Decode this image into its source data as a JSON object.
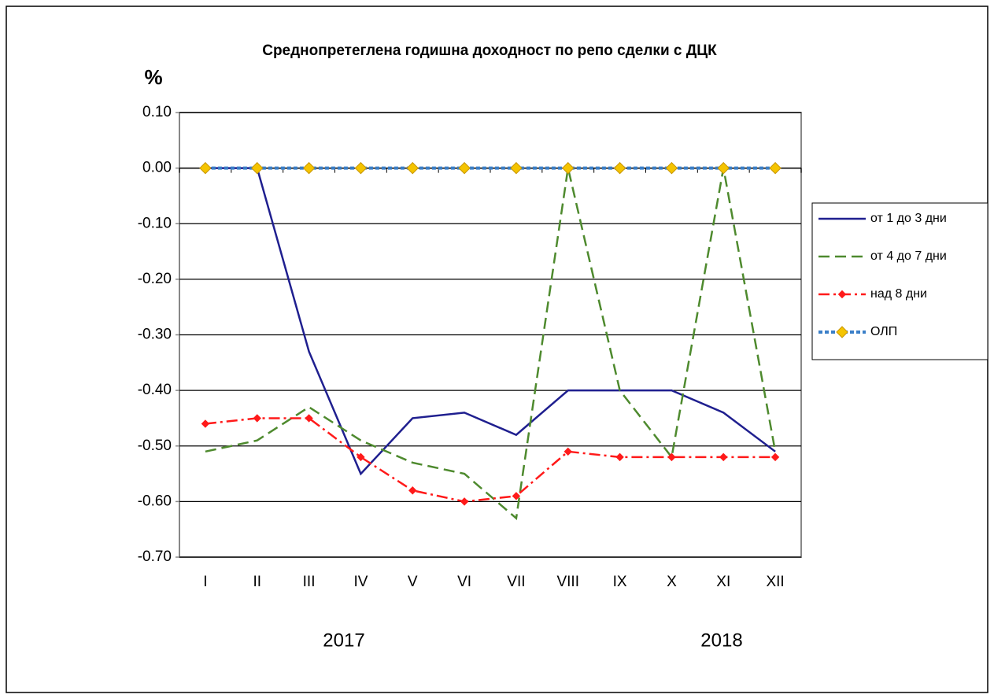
{
  "chart_data": {
    "type": "line",
    "title": "Среднопретеглена годишна доходност по репо сделки с ДЦК",
    "y_label": "%",
    "categories": [
      "I",
      "II",
      "III",
      "IV",
      "V",
      "VI",
      "VII",
      "VIII",
      "IX",
      "X",
      "XI",
      "XII"
    ],
    "year_labels": [
      "2017",
      "2018"
    ],
    "ylim": [
      -0.7,
      0.1
    ],
    "yticks": [
      {
        "value": 0.1,
        "label": "0.10"
      },
      {
        "value": 0,
        "label": "0.00"
      },
      {
        "value": -0.1,
        "label": "-0.10"
      },
      {
        "value": -0.2,
        "label": "-0.20"
      },
      {
        "value": -0.3,
        "label": "-0.30"
      },
      {
        "value": -0.4,
        "label": "-0.40"
      },
      {
        "value": -0.5,
        "label": "-0.50"
      },
      {
        "value": -0.6,
        "label": "-0.60"
      },
      {
        "value": -0.7,
        "label": "-0.70"
      }
    ],
    "grid": true,
    "legend": "right",
    "series": [
      {
        "name": "от 1 до 3 дни",
        "color": "#1f1f8f",
        "dash": "none",
        "marker": "none",
        "values": [
          0,
          0,
          -0.33,
          -0.55,
          -0.45,
          -0.44,
          -0.48,
          -0.4,
          -0.4,
          -0.4,
          -0.44,
          -0.51
        ]
      },
      {
        "name": "от 4 до 7 дни",
        "color": "#4e8a2e",
        "dash": "14 7",
        "marker": "none",
        "values": [
          -0.51,
          -0.49,
          -0.43,
          -0.49,
          -0.53,
          -0.55,
          -0.63,
          0,
          -0.4,
          -0.52,
          0,
          -0.51
        ]
      },
      {
        "name": "над 8 дни",
        "color": "#ff1a1a",
        "dash": "14 5 3 5",
        "marker": "diamond-small",
        "values": [
          -0.46,
          -0.45,
          -0.45,
          -0.52,
          -0.58,
          -0.6,
          -0.59,
          -0.51,
          -0.52,
          -0.52,
          -0.52,
          -0.52
        ]
      },
      {
        "name": "ОЛП",
        "color": "#3a7fc8",
        "dash": "5 3",
        "marker": "diamond",
        "values": [
          0,
          0,
          0,
          0,
          0,
          0,
          0,
          0,
          0,
          0,
          0,
          0
        ]
      }
    ]
  }
}
